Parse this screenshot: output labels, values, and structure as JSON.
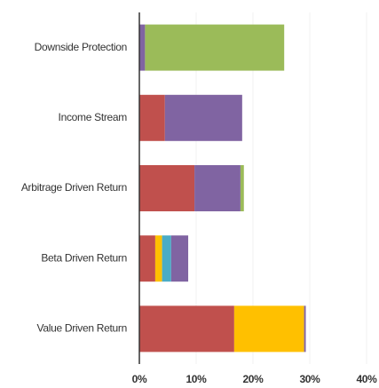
{
  "chart_data": {
    "type": "stacked_barh",
    "categories": [
      "Downside Protection",
      "Income Stream",
      "Arbitrage Driven Return",
      "Beta Driven Return",
      "Value Driven Return"
    ],
    "series": [
      {
        "color": "#c0504d",
        "values": [
          null,
          4.5,
          9.7,
          2.8,
          16.7
        ]
      },
      {
        "color": "#ffc000",
        "values": [
          null,
          null,
          null,
          1.2,
          12.3
        ]
      },
      {
        "color": "#4bacc6",
        "values": [
          null,
          null,
          null,
          1.6,
          null
        ]
      },
      {
        "color": "#8064a2",
        "values": [
          1.0,
          13.6,
          8.1,
          3.0,
          0.3
        ]
      },
      {
        "color": "#9bbb59",
        "values": [
          24.5,
          null,
          0.6,
          null,
          null
        ]
      }
    ],
    "xlim": [
      0,
      40
    ],
    "xticks": [
      {
        "value": 0,
        "label": "0%"
      },
      {
        "value": 10,
        "label": "10%"
      },
      {
        "value": 20,
        "label": "20%"
      },
      {
        "value": 30,
        "label": "30%"
      },
      {
        "value": 40,
        "label": "40%"
      }
    ],
    "grid": true
  }
}
